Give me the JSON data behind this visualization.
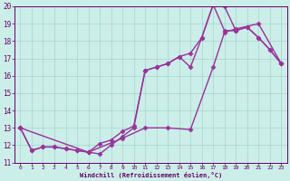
{
  "xlabel": "Windchill (Refroidissement éolien,°C)",
  "bg_color": "#cceee8",
  "line_color": "#993399",
  "xlim": [
    -0.5,
    23.5
  ],
  "ylim": [
    11,
    20
  ],
  "xticks": [
    0,
    1,
    2,
    3,
    4,
    5,
    6,
    7,
    8,
    9,
    10,
    11,
    12,
    13,
    14,
    15,
    16,
    17,
    18,
    19,
    20,
    21,
    22,
    23
  ],
  "yticks": [
    11,
    12,
    13,
    14,
    15,
    16,
    17,
    18,
    19,
    20
  ],
  "line1_x": [
    0,
    1,
    2,
    3,
    4,
    5,
    6,
    7,
    8,
    9,
    10,
    11,
    12,
    13,
    14,
    15,
    16,
    17,
    18,
    19,
    20,
    21,
    22,
    23
  ],
  "line1_y": [
    13,
    11.7,
    11.9,
    11.9,
    11.8,
    11.7,
    11.6,
    11.5,
    12.0,
    12.5,
    13.0,
    16.3,
    16.5,
    16.7,
    17.1,
    16.5,
    18.2,
    20.1,
    18.6,
    18.6,
    18.8,
    18.2,
    17.5,
    16.7
  ],
  "line2_x": [
    0,
    1,
    2,
    3,
    4,
    5,
    6,
    7,
    8,
    9,
    10,
    11,
    12,
    13,
    14,
    15,
    16,
    17,
    18,
    19,
    20,
    21,
    22,
    23
  ],
  "line2_y": [
    13,
    11.7,
    11.9,
    11.9,
    11.8,
    11.7,
    11.6,
    12.1,
    12.3,
    12.8,
    13.1,
    16.3,
    16.5,
    16.7,
    17.1,
    17.3,
    18.2,
    20.1,
    20.0,
    18.6,
    18.8,
    18.2,
    17.5,
    16.7
  ],
  "line3_x": [
    0,
    6,
    9,
    11,
    13,
    15,
    17,
    18,
    19,
    21,
    23
  ],
  "line3_y": [
    13,
    11.6,
    12.4,
    13.0,
    13.0,
    12.9,
    16.5,
    18.5,
    18.7,
    19.0,
    16.7
  ],
  "marker": "D",
  "markersize": 2.5,
  "linewidth": 1.0
}
